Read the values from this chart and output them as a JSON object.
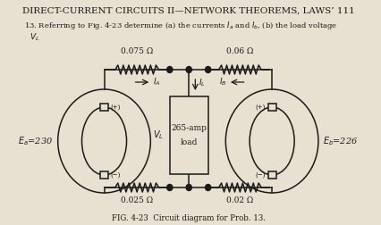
{
  "title_line1": "DIRECT-CURRENT CIRCUITS II—NETWORK THEOREMS, LAWS’ 111",
  "header2": "13. Referring to Fig. 4-23 determine (a) the currents $I_a$ and $I_b$, (b) the load voltage",
  "header3": "$V_L$",
  "fig_caption": "FIG. 4-23  Circuit diagram for Prob. 13.",
  "bg_color": "#e8e0d0",
  "wire_color": "#1a1a1a",
  "res_top_left": "0.075 Ω",
  "res_top_right": "0.06 Ω",
  "res_bot_left": "0.025 Ω",
  "res_bot_right": "0.02 Ω",
  "src_left": "$E_a$=230",
  "src_right": "$E_b$=226",
  "load1": "265-amp",
  "load2": "load",
  "vl": "$V_L$",
  "ia": "$I_A$",
  "ib": "$I_B$",
  "il": "$I_L$"
}
